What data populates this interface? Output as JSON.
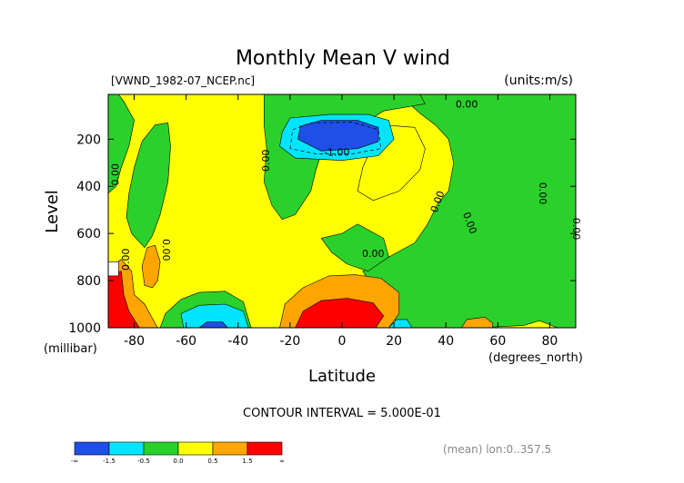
{
  "chart_data": {
    "type": "heatmap",
    "title": "Monthly Mean V wind",
    "file_label": "[VWND_1982-07_NCEP.nc]",
    "units_label": "(units:m/s)",
    "xlabel": "Latitude",
    "xunits": "(degrees_north)",
    "ylabel": "Level",
    "yunits": "(millibar)",
    "xlim": [
      -90,
      90
    ],
    "ylim": [
      1000,
      10
    ],
    "x_ticks": [
      -80,
      -60,
      -40,
      -20,
      0,
      20,
      40,
      60,
      80
    ],
    "y_ticks": [
      200,
      400,
      600,
      800,
      1000
    ],
    "contour_interval_text": "CONTOUR INTERVAL = 5.000E-01",
    "footnote": "(mean) lon:0..357.5",
    "contour_labels": [
      "0.00",
      "0.00",
      "0.00",
      "0.00",
      "0.00",
      "0.00",
      "0.00",
      "0.00",
      "0.00",
      "0.00",
      "-1.00"
    ],
    "colorbar": {
      "labels": [
        "-∞",
        "-1.5",
        "-0.5",
        "0.0",
        "0.5",
        "1.5",
        "∞"
      ],
      "colors": [
        "#1f4fe6",
        "#00e5ff",
        "#2bd12b",
        "#ffff00",
        "#ffa500",
        "#ff0000"
      ]
    },
    "regions": [
      {
        "name": "background",
        "level": "0.0 to 0.5",
        "color": "#ffff00",
        "points": [
          [
            -90,
            10
          ],
          [
            90,
            10
          ],
          [
            90,
            1000
          ],
          [
            -90,
            1000
          ]
        ]
      },
      {
        "name": "neg-north",
        "level": "-0.5 to 0.0",
        "color": "#2bd12b",
        "points": [
          [
            24,
            10
          ],
          [
            90,
            10
          ],
          [
            90,
            1000
          ],
          [
            83,
            1000
          ],
          [
            76,
            970
          ],
          [
            70,
            990
          ],
          [
            52,
            1000
          ],
          [
            22,
            1000
          ],
          [
            20,
            960
          ],
          [
            14,
            860
          ],
          [
            8,
            760
          ],
          [
            18,
            700
          ],
          [
            28,
            640
          ],
          [
            33,
            560
          ],
          [
            37,
            470
          ],
          [
            41,
            420
          ],
          [
            43,
            300
          ],
          [
            41,
            200
          ],
          [
            36,
            140
          ],
          [
            30,
            90
          ],
          [
            26,
            50
          ]
        ]
      },
      {
        "name": "neg-south",
        "level": "-0.5 to 0.0",
        "color": "#2bd12b",
        "points": [
          [
            -90,
            10
          ],
          [
            -86,
            10
          ],
          [
            -84,
            40
          ],
          [
            -80,
            120
          ],
          [
            -82,
            230
          ],
          [
            -85,
            320
          ],
          [
            -87,
            400
          ],
          [
            -90,
            430
          ]
        ]
      },
      {
        "name": "neg-tower",
        "level": "-0.5 to 0.0",
        "color": "#2bd12b",
        "points": [
          [
            -81,
            600
          ],
          [
            -83,
            530
          ],
          [
            -82,
            430
          ],
          [
            -80,
            320
          ],
          [
            -77,
            210
          ],
          [
            -72,
            140
          ],
          [
            -67,
            130
          ],
          [
            -66,
            230
          ],
          [
            -67,
            380
          ],
          [
            -70,
            520
          ],
          [
            -73,
            610
          ],
          [
            -76,
            660
          ]
        ]
      },
      {
        "name": "neg-south-lower",
        "level": "-0.5 to 0.0",
        "color": "#2bd12b",
        "points": [
          [
            -70,
            1000
          ],
          [
            -68,
            940
          ],
          [
            -62,
            880
          ],
          [
            -55,
            850
          ],
          [
            -45,
            845
          ],
          [
            -38,
            890
          ],
          [
            -35,
            1000
          ]
        ]
      },
      {
        "name": "neg-upper-center",
        "level": "-0.5 to 0.0",
        "color": "#2bd12b",
        "points": [
          [
            -30,
            10
          ],
          [
            30,
            10
          ],
          [
            32,
            50
          ],
          [
            16,
            80
          ],
          [
            6,
            150
          ],
          [
            2,
            220
          ],
          [
            -8,
            260
          ],
          [
            -10,
            330
          ],
          [
            -12,
            420
          ],
          [
            -18,
            520
          ],
          [
            -23,
            540
          ],
          [
            -27,
            480
          ],
          [
            -30,
            380
          ],
          [
            -29,
            240
          ],
          [
            -30,
            140
          ]
        ]
      },
      {
        "name": "pos-upper-right",
        "level": "0.0 to 0.5",
        "color": "#ffff00",
        "points": [
          [
            16,
            140
          ],
          [
            28,
            150
          ],
          [
            32,
            240
          ],
          [
            30,
            330
          ],
          [
            22,
            420
          ],
          [
            12,
            460
          ],
          [
            6,
            420
          ],
          [
            8,
            320
          ],
          [
            12,
            220
          ]
        ]
      },
      {
        "name": "neg-tongue",
        "level": "-0.5 to 0.0",
        "color": "#2bd12b",
        "points": [
          [
            -8,
            620
          ],
          [
            0,
            600
          ],
          [
            6,
            560
          ],
          [
            16,
            620
          ],
          [
            18,
            700
          ],
          [
            10,
            760
          ],
          [
            2,
            730
          ],
          [
            -4,
            680
          ]
        ]
      },
      {
        "name": "neg-strong-upper",
        "level": "-1.5 to -0.5",
        "color": "#00e5ff",
        "points": [
          [
            -23,
            170
          ],
          [
            -20,
            110
          ],
          [
            -5,
            95
          ],
          [
            10,
            95
          ],
          [
            18,
            120
          ],
          [
            20,
            200
          ],
          [
            14,
            270
          ],
          [
            0,
            290
          ],
          [
            -18,
            280
          ],
          [
            -24,
            230
          ]
        ]
      },
      {
        "name": "neg-core-upper",
        "level": "< -1.5",
        "color": "#1f4fe6",
        "points": [
          [
            -17,
            200
          ],
          [
            -16,
            145
          ],
          [
            -8,
            120
          ],
          [
            6,
            120
          ],
          [
            14,
            150
          ],
          [
            14,
            210
          ],
          [
            6,
            240
          ],
          [
            -8,
            250
          ]
        ]
      },
      {
        "name": "neg-strong-south",
        "level": "-1.5 to -0.5",
        "color": "#00e5ff",
        "points": [
          [
            -61,
            1000
          ],
          [
            -62,
            940
          ],
          [
            -55,
            905
          ],
          [
            -45,
            900
          ],
          [
            -38,
            930
          ],
          [
            -36,
            1000
          ]
        ]
      },
      {
        "name": "neg-core-south",
        "level": "< -1.5",
        "color": "#1f4fe6",
        "points": [
          [
            -55,
            1000
          ],
          [
            -52,
            975
          ],
          [
            -46,
            975
          ],
          [
            -44,
            1000
          ]
        ]
      },
      {
        "name": "neg-strong-eq",
        "level": "-1.5 to -0.5",
        "color": "#00e5ff",
        "points": [
          [
            18,
            1000
          ],
          [
            21,
            965
          ],
          [
            25,
            965
          ],
          [
            27,
            1000
          ]
        ]
      },
      {
        "name": "pos-strong-center",
        "level": "0.5 to 1.5",
        "color": "#ffa500",
        "points": [
          [
            -24,
            1000
          ],
          [
            -22,
            900
          ],
          [
            -15,
            830
          ],
          [
            -5,
            780
          ],
          [
            5,
            775
          ],
          [
            15,
            790
          ],
          [
            22,
            850
          ],
          [
            22,
            940
          ],
          [
            18,
            1000
          ]
        ]
      },
      {
        "name": "pos-core-center",
        "level": "> 1.5",
        "color": "#ff0000",
        "points": [
          [
            -18,
            1000
          ],
          [
            -15,
            930
          ],
          [
            -8,
            885
          ],
          [
            2,
            875
          ],
          [
            12,
            895
          ],
          [
            16,
            950
          ],
          [
            13,
            1000
          ]
        ]
      },
      {
        "name": "pos-strong-south",
        "level": "0.5 to 1.5",
        "color": "#ffa500",
        "points": [
          [
            -90,
            1000
          ],
          [
            -90,
            750
          ],
          [
            -85,
            710
          ],
          [
            -81,
            760
          ],
          [
            -80,
            860
          ],
          [
            -76,
            900
          ],
          [
            -73,
            960
          ],
          [
            -71,
            1000
          ]
        ]
      },
      {
        "name": "pos-core-south",
        "level": "> 1.5",
        "color": "#ff0000",
        "points": [
          [
            -90,
            1000
          ],
          [
            -90,
            780
          ],
          [
            -85,
            760
          ],
          [
            -84,
            860
          ],
          [
            -82,
            930
          ],
          [
            -78,
            1000
          ]
        ]
      },
      {
        "name": "pos-strong-south-tower",
        "level": "0.5 to 1.5",
        "color": "#ffa500",
        "points": [
          [
            -76,
            820
          ],
          [
            -77,
            740
          ],
          [
            -75,
            660
          ],
          [
            -72,
            650
          ],
          [
            -70,
            720
          ],
          [
            -71,
            800
          ],
          [
            -73,
            830
          ]
        ]
      },
      {
        "name": "pos-strong-north",
        "level": "0.5 to 1.5",
        "color": "#ffa500",
        "points": [
          [
            46,
            1000
          ],
          [
            48,
            965
          ],
          [
            55,
            955
          ],
          [
            58,
            980
          ],
          [
            58,
            1000
          ]
        ]
      },
      {
        "name": "white-corner",
        "level": "missing",
        "color": "#ffffff",
        "points": [
          [
            -90,
            720
          ],
          [
            -86,
            720
          ],
          [
            -86,
            780
          ],
          [
            -90,
            780
          ]
        ]
      }
    ],
    "dashed_contours": [
      [
        [
          -20,
          240
        ],
        [
          -19,
          160
        ],
        [
          -12,
          130
        ],
        [
          4,
          128
        ],
        [
          14,
          160
        ],
        [
          15,
          240
        ],
        [
          4,
          262
        ],
        [
          -10,
          262
        ]
      ]
    ]
  }
}
